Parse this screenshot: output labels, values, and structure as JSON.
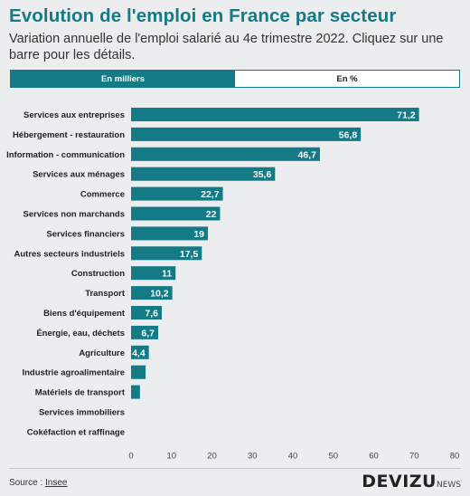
{
  "header": {
    "title": "Evolution de l'emploi en France par secteur",
    "subtitle": "Variation annuelle de l'emploi salarié au 4e trimestre 2022. Cliquez sur une barre pour les détails."
  },
  "toggle": {
    "option_thousands": "En milliers",
    "option_percent": "En %",
    "active": "En milliers"
  },
  "footer": {
    "source_prefix": "Source : ",
    "source_link": "Insee",
    "logo_main": "DEVIZU",
    "logo_suffix": "NEWS"
  },
  "colors": {
    "bar": "#147a86",
    "label_text": "#ffffff"
  },
  "chart_data": {
    "type": "bar",
    "orientation": "horizontal",
    "categories": [
      "Services aux entreprises",
      "Hébergement - restauration",
      "Information - communication",
      "Services aux ménages",
      "Commerce",
      "Services non marchands",
      "Services financiers",
      "Autres secteurs industriels",
      "Construction",
      "Transport",
      "Biens d'équipement",
      "Énergie, eau, déchets",
      "Agriculture",
      "Industrie agroalimentaire",
      "Matériels de transport",
      "Services immobiliers",
      "Cokéfaction et raffinage"
    ],
    "values": [
      71.2,
      56.8,
      46.7,
      35.6,
      22.7,
      22,
      19,
      17.5,
      11,
      10.2,
      7.6,
      6.7,
      4.4,
      3.6,
      2.2,
      0,
      0
    ],
    "labels": [
      "71,2",
      "56,8",
      "46,7",
      "35,6",
      "22,7",
      "22",
      "19",
      "17,5",
      "11",
      "10,2",
      "7,6",
      "6,7",
      "4,4",
      "",
      "",
      "",
      ""
    ],
    "xlim": [
      0,
      80
    ],
    "xticks": [
      0,
      10,
      20,
      30,
      40,
      50,
      60,
      70,
      80
    ],
    "grid": false
  }
}
